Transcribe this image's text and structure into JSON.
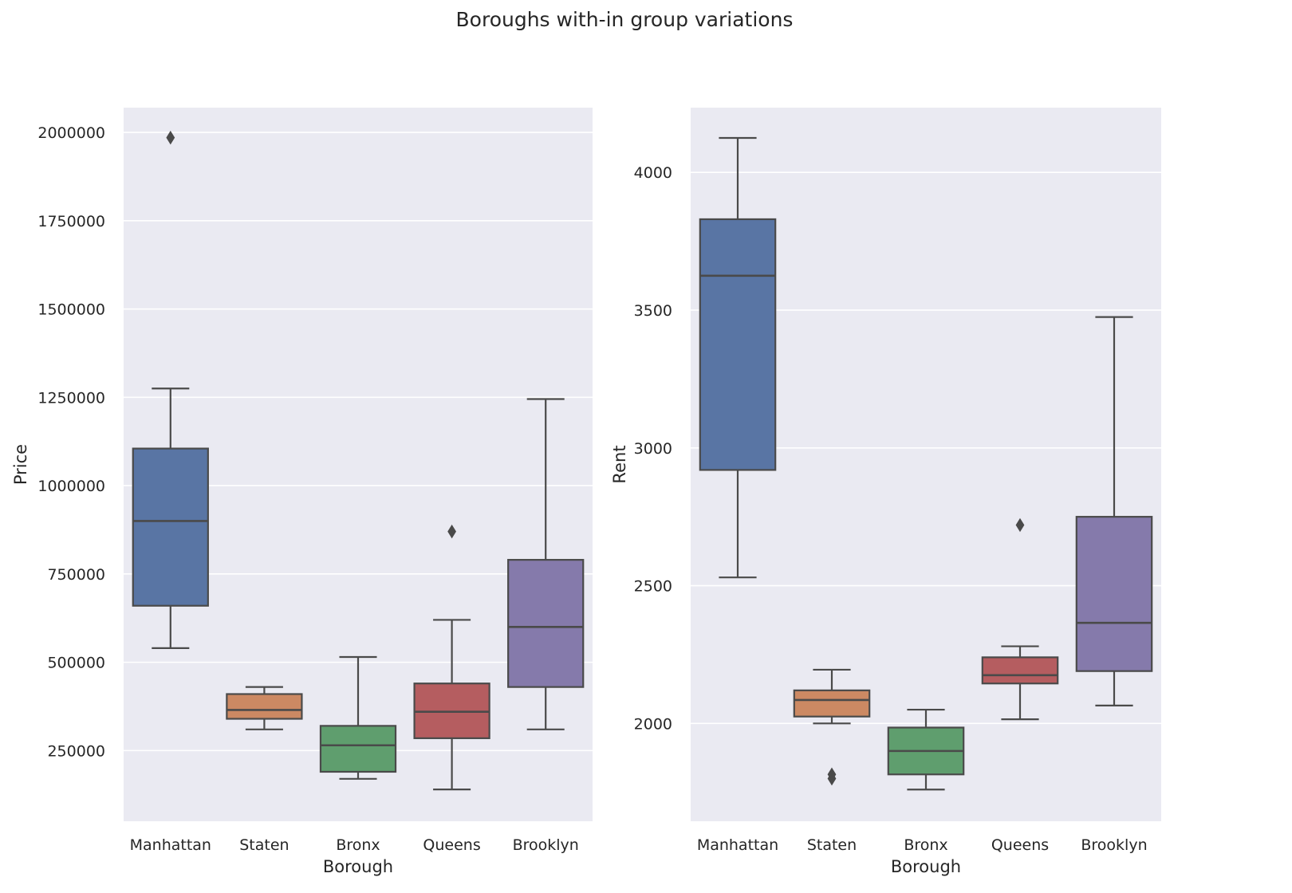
{
  "figure": {
    "suptitle": "Boroughs with-in group variations"
  },
  "chart_data": [
    {
      "type": "box",
      "title": "",
      "xlabel": "Borough",
      "ylabel": "Price",
      "categories": [
        "Manhattan",
        "Staten",
        "Bronx",
        "Queens",
        "Brooklyn"
      ],
      "ylim": [
        50000,
        2070000
      ],
      "yticks": [
        250000,
        500000,
        750000,
        1000000,
        1250000,
        1500000,
        1750000,
        2000000
      ],
      "grid": true,
      "boxes": [
        {
          "category": "Manhattan",
          "whisker_low": 540000,
          "q1": 660000,
          "median": 900000,
          "q3": 1105000,
          "whisker_high": 1275000,
          "outliers": [
            1985000
          ],
          "color": "#5975a4"
        },
        {
          "category": "Staten",
          "whisker_low": 310000,
          "q1": 340000,
          "median": 365000,
          "q3": 410000,
          "whisker_high": 430000,
          "outliers": [],
          "color": "#cc8963"
        },
        {
          "category": "Bronx",
          "whisker_low": 170000,
          "q1": 190000,
          "median": 265000,
          "q3": 320000,
          "whisker_high": 515000,
          "outliers": [],
          "color": "#5f9e6e"
        },
        {
          "category": "Queens",
          "whisker_low": 140000,
          "q1": 285000,
          "median": 360000,
          "q3": 440000,
          "whisker_high": 620000,
          "outliers": [
            870000
          ],
          "color": "#b55d60"
        },
        {
          "category": "Brooklyn",
          "whisker_low": 310000,
          "q1": 430000,
          "median": 600000,
          "q3": 790000,
          "whisker_high": 1245000,
          "outliers": [],
          "color": "#857aab"
        }
      ]
    },
    {
      "type": "box",
      "title": "",
      "xlabel": "Borough",
      "ylabel": "Rent",
      "categories": [
        "Manhattan",
        "Staten",
        "Bronx",
        "Queens",
        "Brooklyn"
      ],
      "ylim": [
        1645,
        4235
      ],
      "yticks": [
        2000,
        2500,
        3000,
        3500,
        4000
      ],
      "grid": true,
      "boxes": [
        {
          "category": "Manhattan",
          "whisker_low": 2530,
          "q1": 2920,
          "median": 3625,
          "q3": 3830,
          "whisker_high": 4125,
          "outliers": [],
          "color": "#5975a4"
        },
        {
          "category": "Staten",
          "whisker_low": 2000,
          "q1": 2025,
          "median": 2085,
          "q3": 2120,
          "whisker_high": 2195,
          "outliers": [
            1800,
            1815
          ],
          "color": "#cc8963"
        },
        {
          "category": "Bronx",
          "whisker_low": 1760,
          "q1": 1815,
          "median": 1900,
          "q3": 1985,
          "whisker_high": 2050,
          "outliers": [],
          "color": "#5f9e6e"
        },
        {
          "category": "Queens",
          "whisker_low": 2015,
          "q1": 2145,
          "median": 2175,
          "q3": 2240,
          "whisker_high": 2280,
          "outliers": [
            2720
          ],
          "color": "#b55d60"
        },
        {
          "category": "Brooklyn",
          "whisker_low": 2065,
          "q1": 2190,
          "median": 2365,
          "q3": 2750,
          "whisker_high": 3475,
          "outliers": [],
          "color": "#857aab"
        }
      ]
    }
  ]
}
